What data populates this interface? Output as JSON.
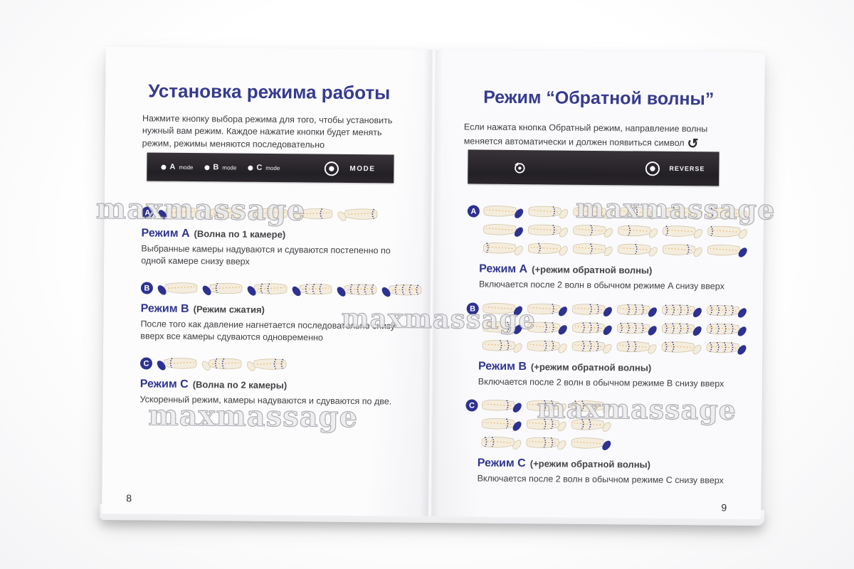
{
  "watermark": "maxmassage",
  "colors": {
    "accent_blue": "#363b8f",
    "navy": "#2d3190",
    "panel_black": "#27232a",
    "text": "#414144",
    "leg_fill": "#f4ecdc",
    "leg_stroke": "#cfc1a3",
    "orange": "#e3a23c"
  },
  "left_page": {
    "page_number": "8",
    "title": "Установка режима работы",
    "intro": "Нажмите кнопку выбора режима для того, чтобы установить нужный вам режим. Каждое нажатие кнопки будет менять режим, режимы меняются последовательно",
    "panel": {
      "leds": [
        {
          "letter": "A",
          "label": "mode"
        },
        {
          "letter": "B",
          "label": "mode"
        },
        {
          "letter": "C",
          "label": "mode"
        }
      ],
      "button_label": "MODE"
    },
    "sections": [
      {
        "badge": "A",
        "title": "Режим A",
        "subtitle": "(Волна по 1 камере)",
        "body": "Выбранные камеры надуваются и сдуваются постепенно по одной камере снизу вверх",
        "rows": [
          [
            [
              0
            ],
            [
              1
            ],
            [
              2
            ],
            [
              3
            ],
            [
              4
            ]
          ]
        ]
      },
      {
        "badge": "B",
        "title": "Режим B",
        "subtitle": "(Режим сжатия)",
        "body": "После того как давление нагнетается последовательно снизу вверх все камеры сдуваются одновременно",
        "rows": [
          [
            [
              0
            ],
            [
              0,
              1
            ],
            [
              0,
              1,
              2
            ],
            [
              0,
              1,
              2,
              3
            ],
            [
              0,
              1,
              2,
              3,
              4
            ],
            [
              0,
              1,
              2,
              3,
              4
            ]
          ]
        ]
      },
      {
        "badge": "C",
        "title": "Режим C",
        "subtitle": "(Волна по 2 камеры)",
        "body": "Ускоренный режим, камеры надуваются и сдуваются по две.",
        "rows": [
          [
            [
              0,
              1
            ],
            [
              1,
              2
            ],
            [
              3,
              4
            ]
          ]
        ]
      }
    ]
  },
  "right_page": {
    "page_number": "9",
    "title": "Режим “Обратной волны”",
    "intro": "Если нажата кнопка Обратный режим, направление волны меняется автоматически и должен появиться символ",
    "intro_symbol": "↺",
    "panel": {
      "button_label": "REVERSE"
    },
    "sections": [
      {
        "badge": "A",
        "title": "Режим A",
        "subtitle": "(+режим обратной волны)",
        "body": "Включается после 2 волн в обычном режиме A снизу вверх",
        "rows": [
          [
            [
              0
            ],
            [
              1
            ],
            [
              2
            ],
            [
              2
            ],
            [
              3
            ],
            [
              4
            ]
          ],
          [
            [
              0
            ],
            [
              1
            ],
            [
              2
            ],
            [
              3
            ],
            [
              4
            ],
            [
              4
            ]
          ],
          [
            [
              4
            ],
            [
              3
            ],
            [
              2
            ],
            [
              2
            ],
            [
              1
            ],
            [
              0
            ]
          ]
        ]
      },
      {
        "badge": "B",
        "title": "Режим B",
        "subtitle": "(+режим обратной волны)",
        "body": "Включается после 2 волн в обычном режиме B снизу вверх",
        "rows": [
          [
            [
              0
            ],
            [
              0,
              1
            ],
            [
              0,
              1,
              2
            ],
            [
              0,
              1,
              2,
              3
            ],
            [
              0,
              1,
              2,
              3,
              4
            ],
            [
              0,
              1,
              2,
              3,
              4
            ]
          ],
          [
            [
              0,
              1
            ],
            [
              0,
              1,
              2
            ],
            [
              0,
              1,
              2,
              3
            ],
            [
              0,
              1,
              2,
              3,
              4
            ],
            [
              0,
              1,
              2,
              3,
              4
            ],
            [
              0,
              1,
              2,
              3,
              4
            ]
          ],
          [
            [
              1,
              2
            ],
            [
              1,
              2
            ],
            [
              1,
              2,
              3
            ],
            [
              2,
              3
            ],
            [
              3,
              4
            ],
            [
              0,
              1,
              2,
              3,
              4
            ]
          ]
        ]
      },
      {
        "badge": "C",
        "title": "Режим C",
        "subtitle": "(+режим обратной волны)",
        "body": "Включается после 2 волн в обычном режиме C снизу вверх",
        "rows": [
          [
            [
              0,
              1
            ],
            [
              1,
              2
            ],
            [
              3,
              4
            ]
          ],
          [
            [
              0,
              1
            ],
            [
              1,
              2
            ],
            [
              2,
              3
            ]
          ],
          [
            [
              3,
              4
            ],
            [
              1,
              2
            ],
            [
              0
            ]
          ]
        ]
      }
    ]
  }
}
